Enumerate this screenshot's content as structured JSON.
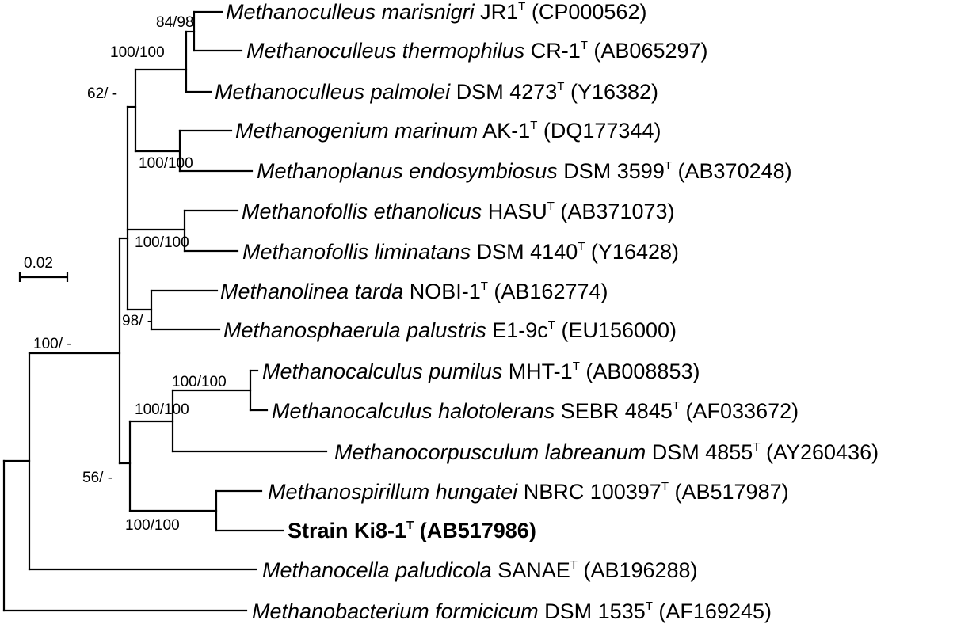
{
  "scale_bar": {
    "label": "0.02"
  },
  "taxa": [
    {
      "genus_species": "Methanoculleus marisnigri",
      "strain": "JR1",
      "sup": "T",
      "accession": "(CP000562)",
      "bold": false
    },
    {
      "genus_species": "Methanoculleus thermophilus",
      "strain": "CR-1",
      "sup": "T",
      "accession": "(AB065297)",
      "bold": false
    },
    {
      "genus_species": "Methanoculleus palmolei",
      "strain": "DSM 4273",
      "sup": "T",
      "accession": "(Y16382)",
      "bold": false
    },
    {
      "genus_species": "Methanogenium marinum",
      "strain": "AK-1",
      "sup": "T",
      "accession": "(DQ177344)",
      "bold": false
    },
    {
      "genus_species": "Methanoplanus endosymbiosus",
      "strain": "DSM 3599",
      "sup": "T",
      "accession": "(AB370248)",
      "bold": false
    },
    {
      "genus_species": "Methanofollis ethanolicus",
      "strain": "HASU",
      "sup": "T",
      "accession": "(AB371073)",
      "bold": false
    },
    {
      "genus_species": "Methanofollis liminatans",
      "strain": "DSM 4140",
      "sup": "T",
      "accession": "(Y16428)",
      "bold": false
    },
    {
      "genus_species": "Methanolinea tarda",
      "strain": "NOBI-1",
      "sup": "T",
      "accession": "(AB162774)",
      "bold": false
    },
    {
      "genus_species": "Methanosphaerula palustris",
      "strain": "E1-9c",
      "sup": "T",
      "accession": "(EU156000)",
      "bold": false
    },
    {
      "genus_species": "Methanocalculus pumilus",
      "strain": "MHT-1",
      "sup": "T",
      "accession": "(AB008853)",
      "bold": false
    },
    {
      "genus_species": "Methanocalculus halotolerans",
      "strain": "SEBR 4845",
      "sup": "T",
      "accession": "(AF033672)",
      "bold": false
    },
    {
      "genus_species": "Methanocorpusculum labreanum",
      "strain": "DSM 4855",
      "sup": "T",
      "accession": "(AY260436)",
      "bold": false
    },
    {
      "genus_species": "Methanospirillum hungatei",
      "strain": "NBRC 100397",
      "sup": "T",
      "accession": "(AB517987)",
      "bold": false
    },
    {
      "genus_species": "",
      "strain": "Strain Ki8-1",
      "sup": "T",
      "accession": "(AB517986)",
      "bold": true
    },
    {
      "genus_species": "Methanocella paludicola",
      "strain": "SANAE",
      "sup": "T",
      "accession": "(AB196288)",
      "bold": false
    },
    {
      "genus_species": "Methanobacterium formicicum",
      "strain": "DSM 1535",
      "sup": "T",
      "accession": "(AF169245)",
      "bold": false
    }
  ],
  "support_values": [
    "84/98",
    "100/100",
    "62/ -",
    "100/100",
    "100/100",
    "98/ -",
    "100/ -",
    "100/100",
    "100/100",
    "56/ -",
    "100/100"
  ]
}
